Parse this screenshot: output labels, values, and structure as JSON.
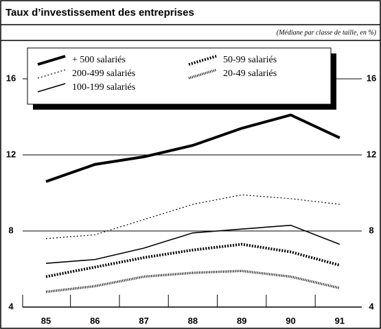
{
  "chart_data": {
    "type": "line",
    "title": "Taux d’investissement des entreprises",
    "subtitle": "(Médiane par classe de taille, en %)",
    "categories": [
      "85",
      "86",
      "87",
      "88",
      "89",
      "90",
      "91"
    ],
    "series": [
      {
        "name": "+ 500 salariés",
        "color": "#000000",
        "values": [
          10.6,
          11.5,
          11.9,
          12.5,
          13.4,
          14.1,
          12.9
        ]
      },
      {
        "name": "200-499 salariés",
        "color": "#000000",
        "values": [
          7.6,
          7.8,
          8.6,
          9.4,
          9.9,
          9.7,
          9.4
        ]
      },
      {
        "name": "100-199 salariés",
        "color": "#000000",
        "values": [
          6.3,
          6.5,
          7.1,
          7.9,
          8.1,
          8.3,
          7.3
        ]
      },
      {
        "name": "50-99 salariés",
        "color": "#000000",
        "values": [
          5.6,
          6.1,
          6.6,
          7.0,
          7.3,
          6.9,
          6.2
        ]
      },
      {
        "name": "20-49 salariés",
        "color": "#000000",
        "values": [
          4.8,
          5.1,
          5.6,
          5.8,
          5.9,
          5.6,
          5.0
        ]
      }
    ],
    "ylim": [
      4,
      18
    ],
    "yticks": [
      4,
      8,
      12,
      16
    ],
    "grid": true
  }
}
